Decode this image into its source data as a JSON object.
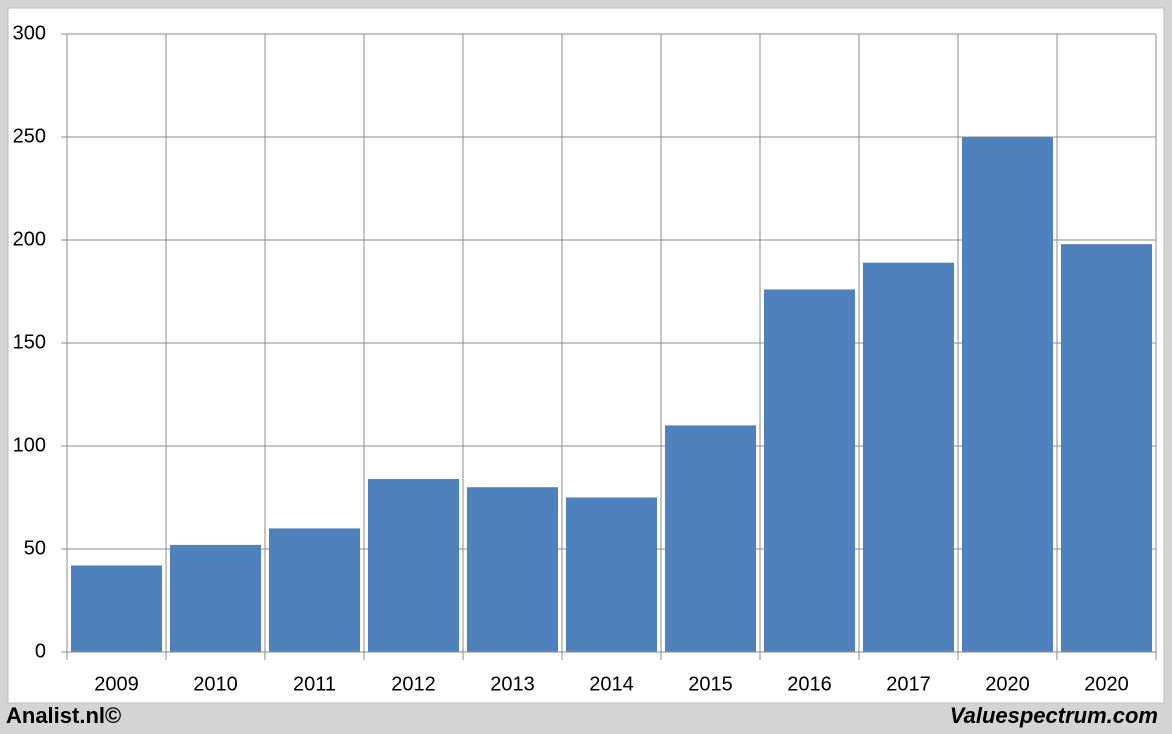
{
  "chart_data": {
    "type": "bar",
    "categories": [
      "2009",
      "2010",
      "2011",
      "2012",
      "2013",
      "2014",
      "2015",
      "2016",
      "2017",
      "2020",
      "2020"
    ],
    "values": [
      42,
      52,
      60,
      84,
      80,
      75,
      110,
      176,
      189,
      250,
      198
    ],
    "color": "#4f81bd",
    "ylim": [
      0,
      300
    ],
    "yticks": [
      0,
      50,
      100,
      150,
      200,
      250,
      300
    ],
    "grid": true
  },
  "footer": {
    "left": "Analist.nl©",
    "right": "Valuespectrum.com"
  }
}
